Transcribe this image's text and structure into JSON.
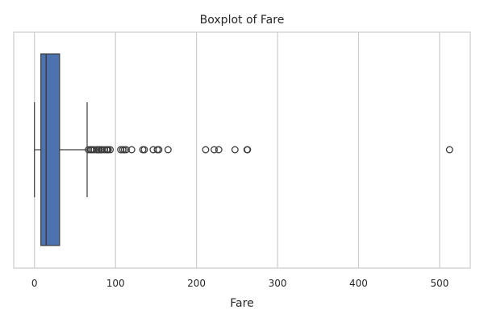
{
  "chart_data": {
    "type": "boxplot",
    "orientation": "horizontal",
    "title": "Boxplot of Fare",
    "xlabel": "Fare",
    "ylabel": "",
    "xlim": [
      -25.6,
      537.9
    ],
    "xticks": [
      0,
      100,
      200,
      300,
      400,
      500
    ],
    "grid": "vertical",
    "series": [
      {
        "stats": {
          "whisker_low": 0,
          "q1": 7.9,
          "median": 14.5,
          "q3": 31.0,
          "whisker_high": 65.0
        },
        "outliers": [
          66.6,
          69.3,
          69.6,
          71.3,
          73.5,
          76.7,
          77.3,
          78.9,
          79.2,
          79.7,
          80.0,
          82.2,
          83.2,
          86.5,
          89.1,
          90.0,
          91.1,
          93.5,
          106.4,
          108.9,
          110.9,
          113.3,
          120.0,
          133.7,
          135.6,
          146.5,
          151.6,
          153.5,
          164.9,
          211.3,
          221.8,
          227.5,
          247.5,
          262.4,
          263.0,
          512.3
        ]
      }
    ],
    "colors": {
      "box_fill": "#4c72b0",
      "line": "#3d3d3d",
      "grid": "#cccccc",
      "frame": "#cccccc"
    }
  }
}
